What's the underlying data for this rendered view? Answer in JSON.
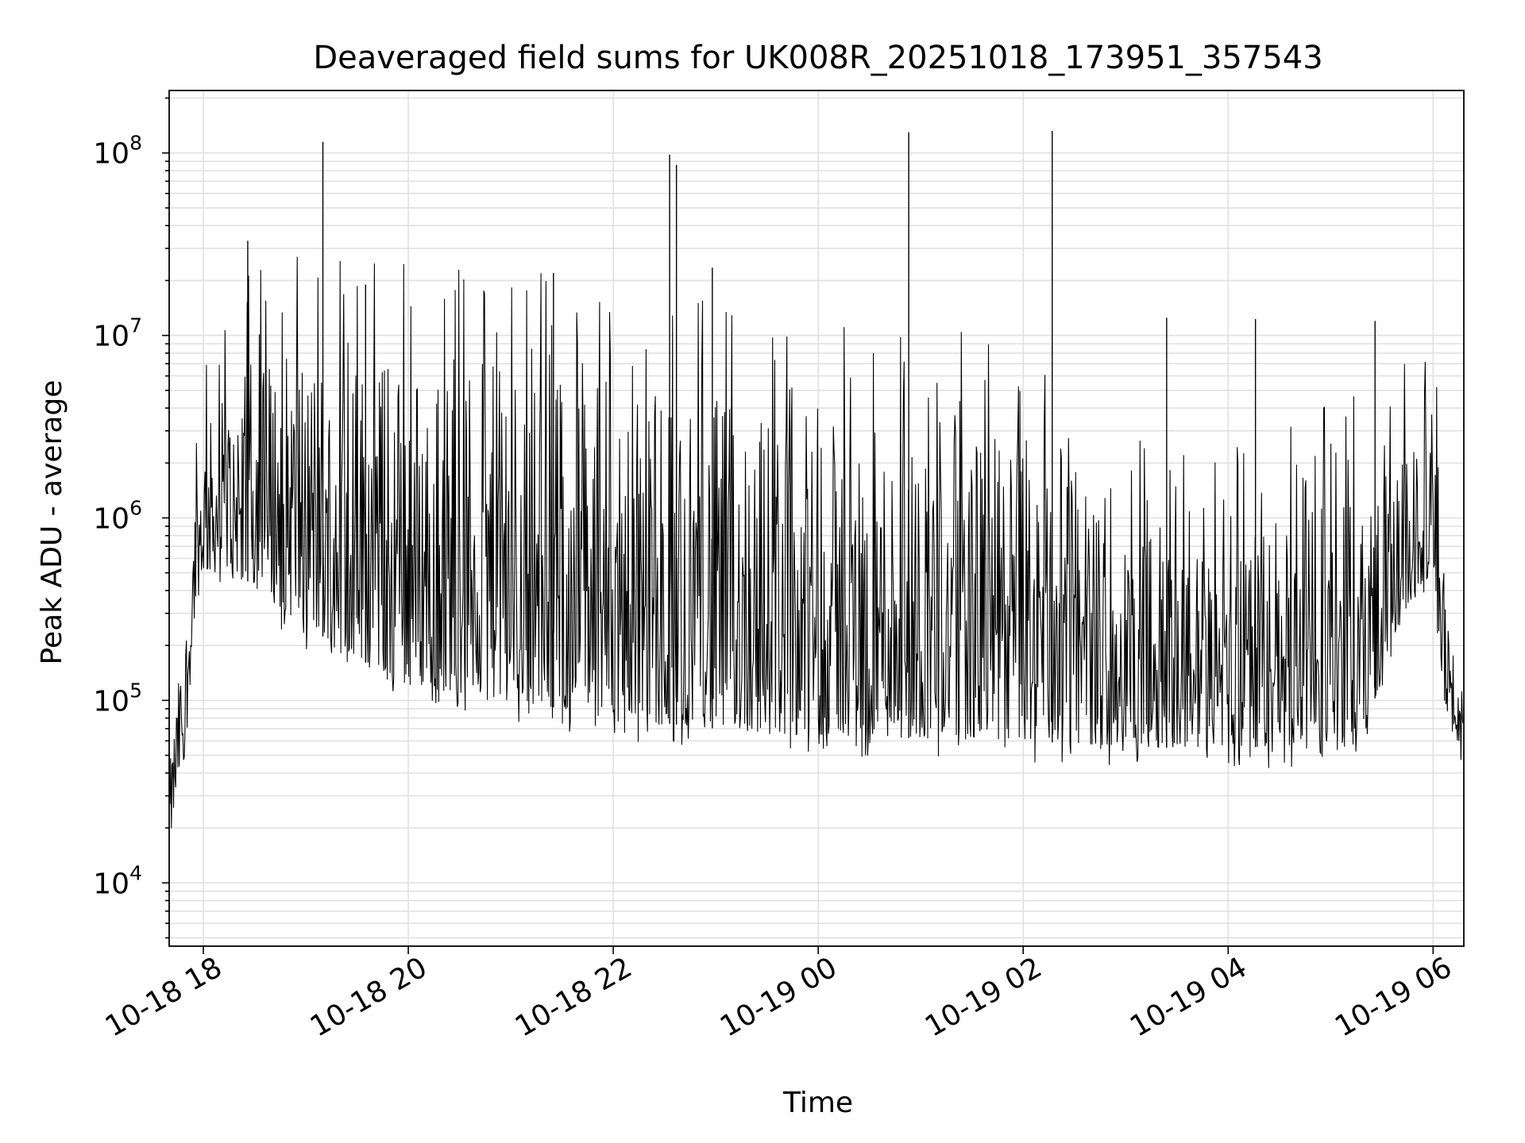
{
  "chart_data": {
    "type": "line",
    "title": "Deaveraged field sums for UK008R_20251018_173951_357543",
    "xlabel": "Time",
    "ylabel": "Peak ADU - average",
    "yscale": "log",
    "ylim": [
      4500,
      220000000
    ],
    "xlim": [
      "2025-10-18 17:40",
      "2025-10-19 06:18"
    ],
    "grid": true,
    "line_color": "#000000",
    "x_ticks": [
      "10-18 18",
      "10-18 20",
      "10-18 22",
      "10-19 00",
      "10-19 02",
      "10-19 04",
      "10-19 06"
    ],
    "y_ticks": [
      {
        "base": "10",
        "exp": "4"
      },
      {
        "base": "10",
        "exp": "5"
      },
      {
        "base": "10",
        "exp": "6"
      },
      {
        "base": "10",
        "exp": "7"
      },
      {
        "base": "10",
        "exp": "8"
      }
    ],
    "series": [
      {
        "x": [
          "2025-10-18 17:40",
          "2025-10-18 17:45",
          "2025-10-18 17:50",
          "2025-10-18 17:55",
          "2025-10-18 18:00",
          "2025-10-18 18:20",
          "2025-10-18 18:40",
          "2025-10-18 19:00",
          "2025-10-18 19:20",
          "2025-10-18 19:40",
          "2025-10-18 20:00",
          "2025-10-18 20:30",
          "2025-10-18 21:00",
          "2025-10-18 21:30",
          "2025-10-18 22:00",
          "2025-10-18 22:30",
          "2025-10-18 23:00",
          "2025-10-18 23:30",
          "2025-10-19 00:00",
          "2025-10-19 00:30",
          "2025-10-19 01:00",
          "2025-10-19 01:30",
          "2025-10-19 02:00",
          "2025-10-19 02:30",
          "2025-10-19 03:00",
          "2025-10-19 03:30",
          "2025-10-19 04:00",
          "2025-10-19 04:30",
          "2025-10-19 05:00",
          "2025-10-19 05:20",
          "2025-10-19 05:40",
          "2025-10-19 05:50",
          "2025-10-19 06:00",
          "2025-10-19 06:05",
          "2025-10-19 06:10",
          "2025-10-19 06:18"
        ],
        "low": [
          15000,
          35000,
          60000,
          300000,
          500000,
          500000,
          350000,
          250000,
          200000,
          150000,
          120000,
          110000,
          100000,
          90000,
          80000,
          75000,
          70000,
          65000,
          65000,
          63000,
          62000,
          61000,
          60000,
          58000,
          56000,
          55000,
          55000,
          56000,
          60000,
          70000,
          250000,
          400000,
          500000,
          150000,
          60000,
          60000
        ],
        "high": [
          40000,
          120000,
          300000,
          1500000,
          3000000,
          6000000,
          8000000,
          9000000,
          8000000,
          8000000,
          7500000,
          7000000,
          7000000,
          6500000,
          6000000,
          5000000,
          4500000,
          4000000,
          3500000,
          3000000,
          3000000,
          3000000,
          2500000,
          1500000,
          800000,
          700000,
          700000,
          900000,
          1200000,
          1500000,
          2000000,
          2500000,
          2500000,
          800000,
          200000,
          120000
        ],
        "spikes": [
          {
            "x": "2025-10-18 19:10",
            "y": 115000000
          },
          {
            "x": "2025-10-18 18:26",
            "y": 33000000
          },
          {
            "x": "2025-10-18 19:35",
            "y": 19000000
          },
          {
            "x": "2025-10-18 21:25",
            "y": 22000000
          },
          {
            "x": "2025-10-18 22:33",
            "y": 98000000
          },
          {
            "x": "2025-10-18 22:37",
            "y": 86000000
          },
          {
            "x": "2025-10-18 22:58",
            "y": 23500000
          },
          {
            "x": "2025-10-19 00:53",
            "y": 130000000
          },
          {
            "x": "2025-10-19 02:17",
            "y": 132000000
          },
          {
            "x": "2025-10-19 03:24",
            "y": 12500000
          },
          {
            "x": "2025-10-19 04:16",
            "y": 12300000
          },
          {
            "x": "2025-10-19 05:26",
            "y": 12000000
          }
        ]
      }
    ]
  }
}
